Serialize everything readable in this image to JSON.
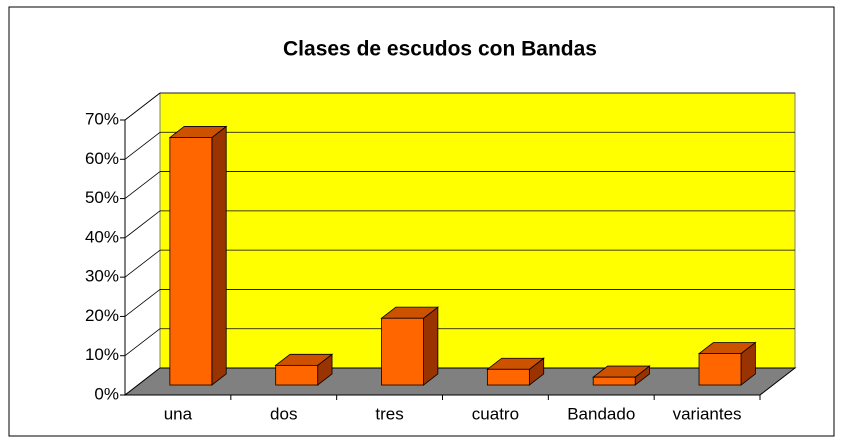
{
  "chart_data": {
    "type": "bar3d",
    "title": "Clases de escudos con Bandas",
    "categories": [
      "una",
      "dos",
      "tres",
      "cuatro",
      "Bandado",
      "variantes"
    ],
    "values": [
      63,
      5,
      17,
      4,
      2,
      8
    ],
    "color": "#ff6600",
    "ylim": [
      0,
      70
    ],
    "yticks": [
      {
        "value": 0,
        "label": "0%"
      },
      {
        "value": 10,
        "label": "10%"
      },
      {
        "value": 20,
        "label": "20%"
      },
      {
        "value": 30,
        "label": "30%"
      },
      {
        "value": 40,
        "label": "40%"
      },
      {
        "value": 50,
        "label": "50%"
      },
      {
        "value": 60,
        "label": "60%"
      },
      {
        "value": 70,
        "label": "70%"
      }
    ],
    "grid": true
  }
}
